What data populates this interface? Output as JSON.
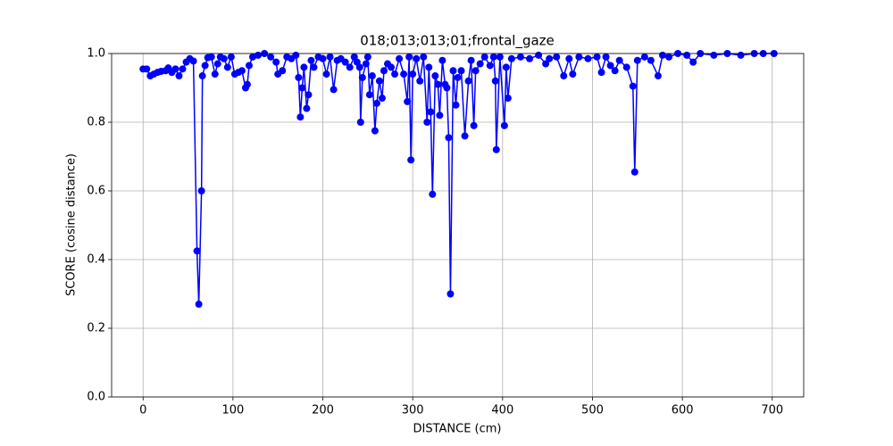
{
  "chart_data": {
    "type": "line",
    "title": "018;013;013;01;frontal_gaze",
    "xlabel": "DISTANCE (cm)",
    "ylabel": "SCORE (cosine distance)",
    "color": "blue",
    "grid": true,
    "marker": "circle",
    "xlim": [
      -35,
      735
    ],
    "ylim": [
      0,
      1
    ],
    "xticks": [
      0,
      100,
      200,
      300,
      400,
      500,
      600,
      700
    ],
    "yticks": [
      {
        "value": 0,
        "label": "0.0"
      },
      {
        "value": 0.2,
        "label": "0.2"
      },
      {
        "value": 0.4,
        "label": "0.4"
      },
      {
        "value": 0.6,
        "label": "0.6"
      },
      {
        "value": 0.8,
        "label": "0.8"
      },
      {
        "value": 1,
        "label": "1.0"
      }
    ],
    "x": [
      0,
      4,
      8,
      12,
      16,
      20,
      25,
      28,
      32,
      36,
      40,
      44,
      48,
      52,
      56,
      60,
      62,
      65,
      66,
      69,
      72,
      76,
      80,
      83,
      86,
      90,
      94,
      98,
      102,
      106,
      110,
      114,
      116,
      118,
      122,
      128,
      135,
      142,
      148,
      150,
      155,
      160,
      165,
      170,
      173,
      175,
      177,
      179,
      182,
      184,
      187,
      190,
      195,
      200,
      204,
      208,
      212,
      216,
      220,
      225,
      230,
      235,
      238,
      241,
      242,
      244,
      248,
      250,
      252,
      255,
      258,
      260,
      263,
      266,
      268,
      272,
      276,
      280,
      285,
      290,
      294,
      296,
      298,
      300,
      304,
      308,
      312,
      316,
      318,
      320,
      322,
      325,
      328,
      330,
      333,
      336,
      338,
      340,
      342,
      345,
      348,
      350,
      354,
      358,
      362,
      365,
      368,
      370,
      375,
      380,
      386,
      390,
      392,
      393,
      397,
      402,
      404,
      406,
      410,
      420,
      430,
      440,
      448,
      452,
      460,
      468,
      474,
      478,
      485,
      495,
      505,
      510,
      515,
      520,
      525,
      530,
      538,
      545,
      547,
      550,
      558,
      565,
      573,
      578,
      585,
      595,
      605,
      612,
      620,
      635,
      650,
      665,
      680,
      690,
      702
    ],
    "values": [
      0.955,
      0.955,
      0.935,
      0.94,
      0.945,
      0.948,
      0.95,
      0.958,
      0.945,
      0.955,
      0.935,
      0.955,
      0.975,
      0.985,
      0.978,
      0.425,
      0.27,
      0.6,
      0.935,
      0.965,
      0.988,
      0.99,
      0.94,
      0.97,
      0.99,
      0.985,
      0.96,
      0.99,
      0.94,
      0.945,
      0.95,
      0.9,
      0.91,
      0.965,
      0.99,
      0.995,
      1.0,
      0.99,
      0.975,
      0.94,
      0.95,
      0.99,
      0.985,
      0.995,
      0.93,
      0.815,
      0.9,
      0.96,
      0.84,
      0.88,
      0.98,
      0.96,
      0.99,
      0.985,
      0.94,
      0.99,
      0.895,
      0.98,
      0.985,
      0.975,
      0.96,
      0.99,
      0.975,
      0.96,
      0.8,
      0.93,
      0.97,
      0.99,
      0.88,
      0.935,
      0.775,
      0.855,
      0.92,
      0.87,
      0.95,
      0.97,
      0.96,
      0.94,
      0.985,
      0.94,
      0.86,
      0.99,
      0.69,
      0.94,
      0.985,
      0.92,
      0.99,
      0.8,
      0.96,
      0.83,
      0.59,
      0.935,
      0.91,
      0.82,
      0.98,
      0.91,
      0.9,
      0.755,
      0.3,
      0.95,
      0.85,
      0.93,
      0.95,
      0.76,
      0.92,
      0.98,
      0.79,
      0.95,
      0.97,
      0.99,
      0.965,
      0.99,
      0.92,
      0.72,
      0.99,
      0.79,
      0.96,
      0.87,
      0.985,
      0.99,
      0.985,
      0.995,
      0.97,
      0.985,
      0.99,
      0.935,
      0.985,
      0.94,
      0.99,
      0.985,
      0.99,
      0.945,
      0.99,
      0.965,
      0.95,
      0.98,
      0.96,
      0.905,
      0.655,
      0.98,
      0.99,
      0.98,
      0.935,
      0.995,
      0.99,
      1.0,
      0.995,
      0.975,
      1.0,
      0.995,
      1.0,
      0.995,
      1.0,
      1.0,
      1.0
    ]
  }
}
